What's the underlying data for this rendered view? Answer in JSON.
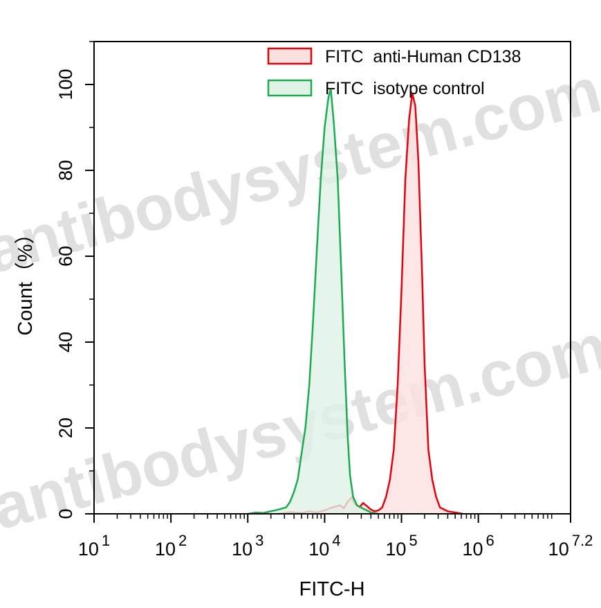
{
  "watermark": {
    "text": "antibodysystem.com",
    "color": "#c8c8c8"
  },
  "chart_data": {
    "type": "area",
    "xlabel": "FITC-H",
    "ylabel": "Count（%）",
    "xscale": "log",
    "xlim_log10": [
      1,
      7.2
    ],
    "ylim": [
      0,
      110
    ],
    "xticks": [
      {
        "base": "10",
        "exp": "1",
        "value_log10": 1
      },
      {
        "base": "10",
        "exp": "2",
        "value_log10": 2
      },
      {
        "base": "10",
        "exp": "3",
        "value_log10": 3
      },
      {
        "base": "10",
        "exp": "4",
        "value_log10": 4
      },
      {
        "base": "10",
        "exp": "5",
        "value_log10": 5
      },
      {
        "base": "10",
        "exp": "6",
        "value_log10": 6
      },
      {
        "base": "10",
        "exp": "7.2",
        "value_log10": 7.2
      }
    ],
    "yticks": [
      0,
      20,
      40,
      60,
      80,
      100
    ],
    "grid": false,
    "legend_position": "top-right",
    "series": [
      {
        "name": "FITC  anti-Human CD138",
        "color": "#e8000b",
        "fill": "#fbe0e0",
        "points_log10": [
          [
            3.4,
            0
          ],
          [
            3.55,
            0.4
          ],
          [
            3.7,
            0.2
          ],
          [
            3.8,
            0.6
          ],
          [
            3.9,
            0.3
          ],
          [
            4.0,
            0.8
          ],
          [
            4.1,
            1.5
          ],
          [
            4.2,
            2.0
          ],
          [
            4.25,
            1.3
          ],
          [
            4.3,
            2.8
          ],
          [
            4.35,
            3.8
          ],
          [
            4.4,
            2.2
          ],
          [
            4.45,
            1.5
          ],
          [
            4.5,
            2.5
          ],
          [
            4.55,
            1.8
          ],
          [
            4.6,
            1.0
          ],
          [
            4.65,
            0.6
          ],
          [
            4.7,
            0.8
          ],
          [
            4.75,
            1.5
          ],
          [
            4.8,
            4.0
          ],
          [
            4.85,
            8.0
          ],
          [
            4.9,
            15.0
          ],
          [
            4.95,
            30.0
          ],
          [
            5.0,
            52.0
          ],
          [
            5.05,
            78.0
          ],
          [
            5.1,
            92.0
          ],
          [
            5.14,
            98.0
          ],
          [
            5.18,
            95.0
          ],
          [
            5.22,
            82.0
          ],
          [
            5.27,
            55.0
          ],
          [
            5.3,
            35.0
          ],
          [
            5.35,
            15.0
          ],
          [
            5.4,
            8.0
          ],
          [
            5.45,
            4.0
          ],
          [
            5.5,
            1.5
          ],
          [
            5.6,
            0.6
          ],
          [
            5.7,
            0.3
          ],
          [
            5.8,
            0
          ]
        ]
      },
      {
        "name": "FITC  isotype control",
        "color": "#1aab50",
        "fill": "#e0f3e6",
        "points_log10": [
          [
            3.0,
            0
          ],
          [
            3.1,
            0.3
          ],
          [
            3.2,
            0.2
          ],
          [
            3.3,
            0.6
          ],
          [
            3.4,
            1.0
          ],
          [
            3.5,
            1.5
          ],
          [
            3.55,
            2.8
          ],
          [
            3.6,
            5.0
          ],
          [
            3.65,
            8.0
          ],
          [
            3.7,
            14.0
          ],
          [
            3.75,
            20.0
          ],
          [
            3.8,
            30.0
          ],
          [
            3.85,
            45.0
          ],
          [
            3.9,
            62.0
          ],
          [
            3.95,
            78.0
          ],
          [
            4.0,
            90.0
          ],
          [
            4.05,
            97.0
          ],
          [
            4.08,
            99.0
          ],
          [
            4.12,
            91.0
          ],
          [
            4.17,
            78.0
          ],
          [
            4.22,
            55.0
          ],
          [
            4.26,
            35.0
          ],
          [
            4.3,
            18.0
          ],
          [
            4.33,
            9.0
          ],
          [
            4.37,
            4.0
          ],
          [
            4.42,
            2.0
          ],
          [
            4.5,
            1.2
          ],
          [
            4.55,
            0.8
          ],
          [
            4.6,
            0.3
          ],
          [
            4.7,
            0
          ]
        ]
      }
    ]
  }
}
